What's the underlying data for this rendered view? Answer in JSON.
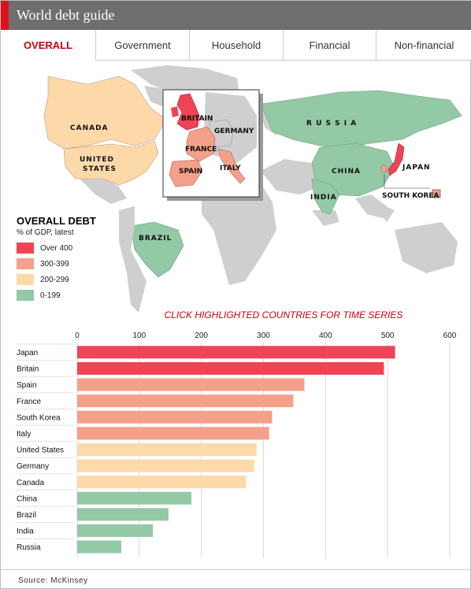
{
  "header": {
    "title": "World debt guide"
  },
  "tabs": [
    {
      "label": "OVERALL",
      "active": true
    },
    {
      "label": "Government",
      "active": false
    },
    {
      "label": "Household",
      "active": false
    },
    {
      "label": "Financial",
      "active": false
    },
    {
      "label": "Non-financial",
      "active": false
    }
  ],
  "map": {
    "labels": {
      "canada": "CANADA",
      "united": "UNITED",
      "states": "STATES",
      "brazil": "BRAZIL",
      "russia": "R U S S I A",
      "china": "CHINA",
      "india": "INDIA",
      "japan": "JAPAN",
      "south_korea": "SOUTH KOREA",
      "britain": "BRITAIN",
      "germany": "GERMANY",
      "france": "FRANCE",
      "spain": "SPAIN",
      "italy": "ITALY"
    }
  },
  "legend": {
    "title": "OVERALL DEBT",
    "subtitle": "% of GDP, latest",
    "items": [
      {
        "label": "Over 400",
        "color": "#ee4455"
      },
      {
        "label": "300-399",
        "color": "#f4a08a"
      },
      {
        "label": "200-299",
        "color": "#fdd9aa"
      },
      {
        "label": "0-199",
        "color": "#93c9a5"
      }
    ]
  },
  "cta": "CLICK HIGHLIGHTED COUNTRIES FOR TIME SERIES",
  "chart_data": {
    "type": "bar",
    "orientation": "horizontal",
    "categories": [
      "Japan",
      "Britain",
      "Spain",
      "France",
      "South Korea",
      "Italy",
      "United States",
      "Germany",
      "Canada",
      "China",
      "Brazil",
      "India",
      "Russia"
    ],
    "values": [
      512,
      494,
      366,
      348,
      314,
      309,
      289,
      285,
      272,
      184,
      147,
      122,
      71
    ],
    "colors": [
      "#ee4455",
      "#ee4455",
      "#f4a08a",
      "#f4a08a",
      "#f4a08a",
      "#f4a08a",
      "#fdd9aa",
      "#fdd9aa",
      "#fdd9aa",
      "#93c9a5",
      "#93c9a5",
      "#93c9a5",
      "#93c9a5"
    ],
    "xlim": [
      0,
      600
    ],
    "ticks": [
      0,
      100,
      200,
      300,
      400,
      500,
      600
    ],
    "grid": true
  },
  "source": "Source: McKinsey"
}
